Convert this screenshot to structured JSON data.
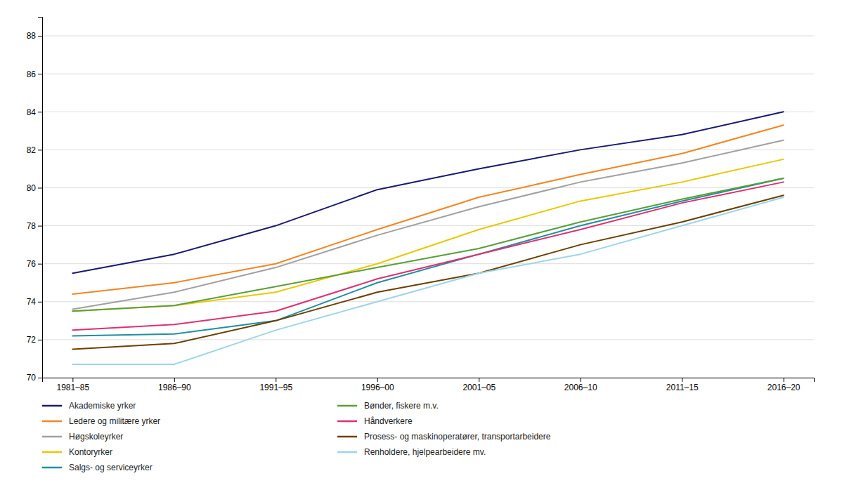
{
  "chart_data": {
    "type": "line",
    "categories": [
      "1981–85",
      "1986–90",
      "1991–95",
      "1996–00",
      "2001–05",
      "2006–10",
      "2011–15",
      "2016–20"
    ],
    "series": [
      {
        "name": "Akademiske yrker",
        "color": "#1a1a6e",
        "values": [
          75.5,
          76.5,
          78.0,
          79.9,
          81.0,
          82.0,
          82.8,
          84.0
        ]
      },
      {
        "name": "Ledere og militære yrker",
        "color": "#f28522",
        "values": [
          74.4,
          75.0,
          76.0,
          77.8,
          79.5,
          80.7,
          81.8,
          83.3
        ]
      },
      {
        "name": "Høgskoleyrker",
        "color": "#a0a0a0",
        "values": [
          73.6,
          74.5,
          75.8,
          77.5,
          79.0,
          80.3,
          81.3,
          82.5
        ]
      },
      {
        "name": "Kontoryrker",
        "color": "#e8c800",
        "values": [
          73.5,
          73.8,
          74.5,
          76.0,
          77.8,
          79.3,
          80.3,
          81.5
        ]
      },
      {
        "name": "Salgs- og serviceyrker",
        "color": "#1e8fa0",
        "values": [
          72.2,
          72.3,
          73.0,
          75.0,
          76.5,
          78.0,
          79.3,
          80.5
        ]
      },
      {
        "name": "Bønder, fiskere m.v.",
        "color": "#5a9e3a",
        "values": [
          73.5,
          73.8,
          74.8,
          75.8,
          76.8,
          78.2,
          79.4,
          80.5
        ]
      },
      {
        "name": "Håndverkere",
        "color": "#e03070",
        "values": [
          72.5,
          72.8,
          73.5,
          75.2,
          76.5,
          77.8,
          79.2,
          80.3
        ]
      },
      {
        "name": "Prosess- og maskinoperatører, transportarbeidere",
        "color": "#6b4000",
        "values": [
          71.5,
          71.8,
          73.0,
          74.5,
          75.5,
          77.0,
          78.2,
          79.6
        ]
      },
      {
        "name": "Renholdere, hjelpearbeidere mv.",
        "color": "#9dd5e8",
        "values": [
          70.7,
          70.7,
          72.5,
          74.0,
          75.5,
          76.5,
          78.0,
          79.5
        ]
      }
    ],
    "ylim": [
      70,
      89
    ],
    "yticks": [
      70,
      72,
      74,
      76,
      78,
      80,
      82,
      84,
      86,
      88
    ],
    "grid": true,
    "legend": "bottom"
  }
}
